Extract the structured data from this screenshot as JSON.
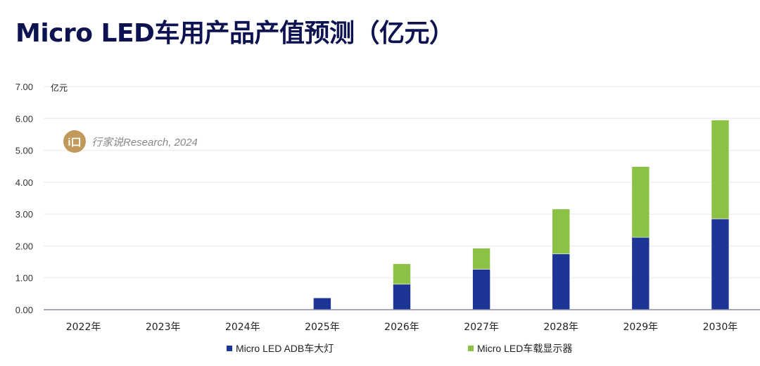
{
  "title": "Micro LED车用产品产值预测（亿元）",
  "watermark": {
    "logo_text": "i口",
    "text": "行家说Research, 2024"
  },
  "chart_data": {
    "type": "bar",
    "stacked": true,
    "title": "Micro LED车用产品产值预测（亿元）",
    "ylabel": "亿元",
    "xlabel": "",
    "ylim": [
      0,
      7
    ],
    "yticks": [
      "0.00",
      "1.00",
      "2.00",
      "3.00",
      "4.00",
      "5.00",
      "6.00",
      "7.00"
    ],
    "grid": true,
    "legend_position": "bottom",
    "categories": [
      "2022年",
      "2023年",
      "2024年",
      "2025年",
      "2026年",
      "2027年",
      "2028年",
      "2029年",
      "2030年"
    ],
    "series": [
      {
        "name": "Micro LED ADB车大灯",
        "color": "#1c3596",
        "values": [
          0,
          0,
          0,
          0.37,
          0.8,
          1.27,
          1.75,
          2.27,
          2.85
        ]
      },
      {
        "name": "Micro LED车载显示器",
        "color": "#8bc145",
        "values": [
          0,
          0,
          0,
          0,
          0.64,
          0.66,
          1.41,
          2.22,
          3.1
        ]
      }
    ]
  }
}
